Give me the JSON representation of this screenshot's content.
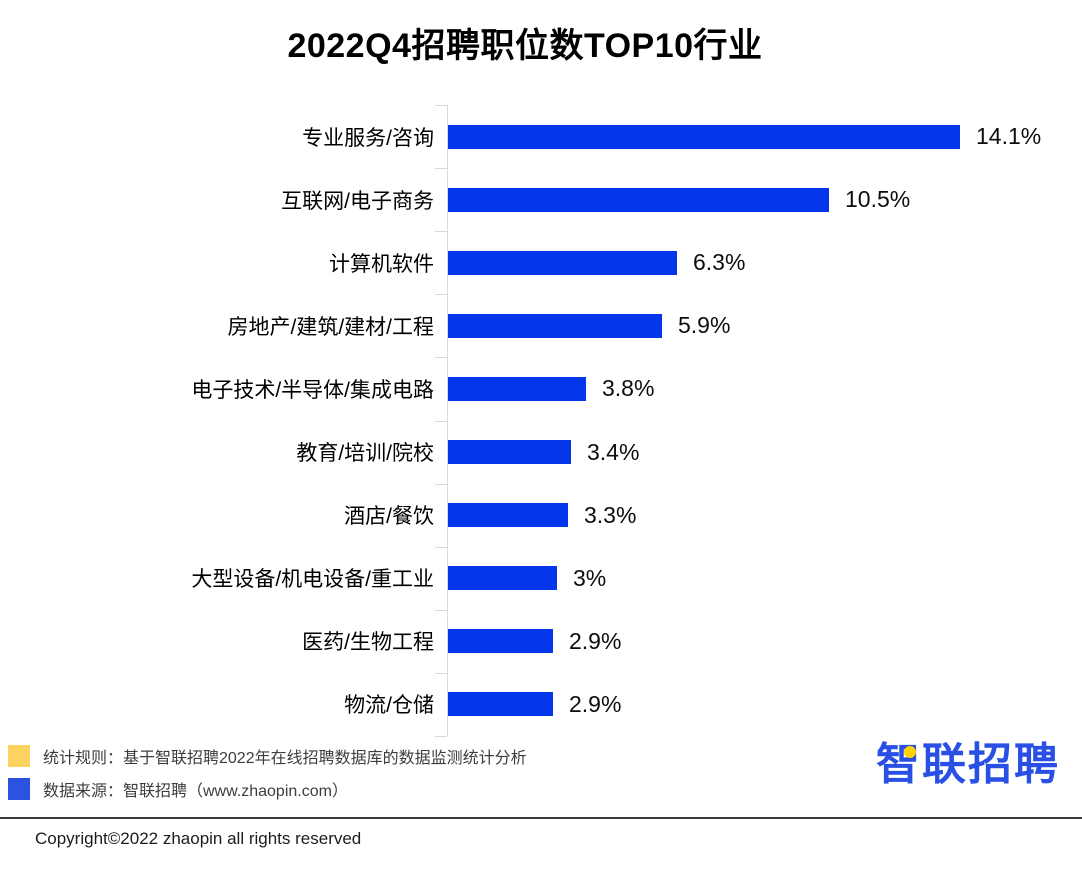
{
  "chart_data": {
    "type": "bar",
    "orientation": "horizontal",
    "title": "2022Q4招聘职位数TOP10行业",
    "categories": [
      "专业服务/咨询",
      "互联网/电子商务",
      "计算机软件",
      "房地产/建筑/建材/工程",
      "电子技术/半导体/集成电路",
      "教育/培训/院校",
      "酒店/餐饮",
      "大型设备/机电设备/重工业",
      "医药/生物工程",
      "物流/仓储"
    ],
    "values": [
      14.1,
      10.5,
      6.3,
      5.9,
      3.8,
      3.4,
      3.3,
      3,
      2.9,
      2.9
    ],
    "value_labels": [
      "14.1%",
      "10.5%",
      "6.3%",
      "5.9%",
      "3.8%",
      "3.4%",
      "3.3%",
      "3%",
      "2.9%",
      "2.9%"
    ],
    "xlabel": "",
    "ylabel": "",
    "xlim": [
      0,
      15
    ],
    "grid": false,
    "legend_position": "none",
    "bar_color": "#0437ec",
    "axis_color": "#d9d9d9"
  },
  "footnotes": {
    "items": [
      {
        "swatch_color": "#fbd35e",
        "text": "统计规则：基于智联招聘2022年在线招聘数据库的数据监测统计分析"
      },
      {
        "swatch_color": "#2c52e2",
        "text": "数据来源：智联招聘（www.zhaopin.com）"
      }
    ]
  },
  "logo": {
    "text": "智联招聘",
    "color": "#2a4fe4",
    "accent_color": "#ffd200"
  },
  "copyright": "Copyright©2022 zhaopin all rights reserved"
}
